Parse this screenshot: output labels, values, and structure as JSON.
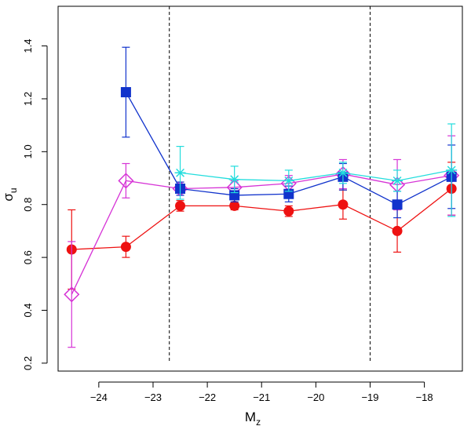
{
  "chart_data": {
    "type": "line",
    "title": "",
    "xlabel": "M",
    "xlabel_sub": "z",
    "ylabel": "σ",
    "ylabel_sub": "u",
    "xlim": [
      -24.75,
      -17.3
    ],
    "ylim": [
      0.17,
      1.55
    ],
    "x_ticks": [
      -24,
      -23,
      -22,
      -21,
      -20,
      -19,
      -18
    ],
    "y_ticks": [
      0.2,
      0.4,
      0.6,
      0.8,
      1.0,
      1.2,
      1.4
    ],
    "y_tick_labels": [
      "0.2",
      "0.4",
      "0.6",
      "0.8",
      "1.0",
      "1.2",
      "1.4"
    ],
    "vlines": [
      -22.7,
      -19.0
    ],
    "series": [
      {
        "name": "red-circles",
        "color": "#ee1111",
        "marker": "circle",
        "x": [
          -24.5,
          -23.5,
          -22.5,
          -21.5,
          -20.5,
          -19.5,
          -18.5,
          -17.5
        ],
        "y": [
          0.63,
          0.64,
          0.795,
          0.795,
          0.775,
          0.8,
          0.7,
          0.86
        ],
        "err": [
          0.15,
          0.04,
          0.02,
          0.015,
          0.02,
          0.055,
          0.08,
          0.1
        ]
      },
      {
        "name": "magenta-diamonds",
        "color": "#d633d6",
        "marker": "diamond",
        "x": [
          -24.5,
          -23.5,
          -22.5,
          -21.5,
          -20.5,
          -19.5,
          -18.5,
          -17.5
        ],
        "y": [
          0.46,
          0.89,
          0.86,
          0.865,
          0.88,
          0.915,
          0.875,
          0.91
        ],
        "err": [
          0.2,
          0.065,
          0.025,
          0.025,
          0.03,
          0.055,
          0.095,
          0.15
        ]
      },
      {
        "name": "blue-squares",
        "color": "#1133cc",
        "marker": "square",
        "x": [
          -23.5,
          -22.5,
          -21.5,
          -20.5,
          -19.5,
          -18.5,
          -17.5
        ],
        "y": [
          1.225,
          0.86,
          0.835,
          0.84,
          0.905,
          0.8,
          0.905
        ],
        "err": [
          0.17,
          0.025,
          0.025,
          0.03,
          0.05,
          0.05,
          0.12
        ]
      },
      {
        "name": "cyan-crosses",
        "color": "#22dddd",
        "marker": "star",
        "x": [
          -22.5,
          -21.5,
          -20.5,
          -19.5,
          -18.5,
          -17.5
        ],
        "y": [
          0.92,
          0.895,
          0.89,
          0.92,
          0.89,
          0.93
        ],
        "err": [
          0.1,
          0.05,
          0.04,
          0.04,
          0.04,
          0.175
        ]
      }
    ]
  }
}
